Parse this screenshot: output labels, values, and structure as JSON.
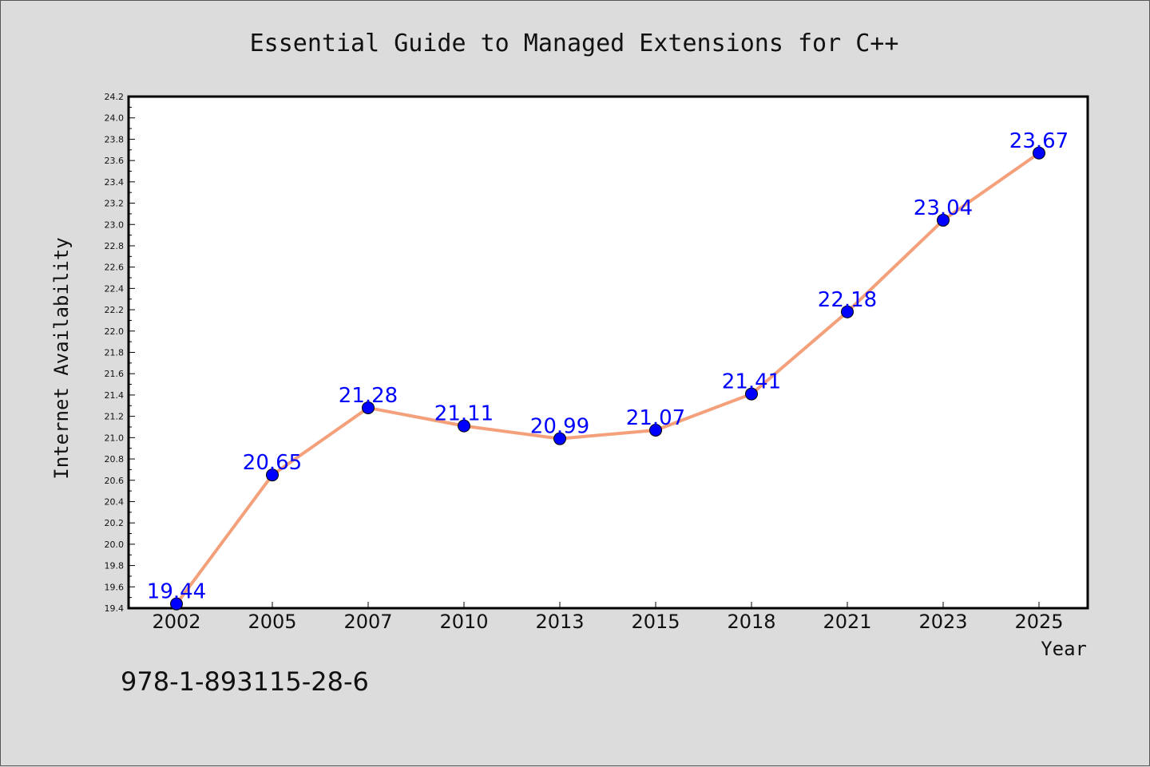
{
  "chart_data": {
    "type": "line",
    "title": "Essential Guide to Managed Extensions for C++",
    "xlabel": "Year",
    "ylabel": "Internet Availability",
    "categories": [
      "2002",
      "2005",
      "2007",
      "2010",
      "2013",
      "2015",
      "2018",
      "2021",
      "2023",
      "2025"
    ],
    "series": [
      {
        "values": [
          19.44,
          20.65,
          21.28,
          21.11,
          20.99,
          21.07,
          21.41,
          22.18,
          23.04,
          23.67
        ],
        "labels": [
          "19.44",
          "20.65",
          "21.28",
          "21.11",
          "20.99",
          "21.07",
          "21.41",
          "22.18",
          "23.04",
          "23.67"
        ]
      }
    ],
    "ylim": [
      19.4,
      24.2
    ],
    "yticks": [
      "19.4",
      "19.6",
      "19.8",
      "20.0",
      "20.2",
      "20.4",
      "20.6",
      "20.8",
      "21.0",
      "21.2",
      "21.4",
      "21.6",
      "21.8",
      "22.0",
      "22.2",
      "22.4",
      "22.6",
      "22.8",
      "23.0",
      "23.2",
      "23.4",
      "23.6",
      "23.8",
      "24.0",
      "24.2"
    ],
    "grid": false,
    "line_color": "#f4a07a",
    "marker_color": "#0000ff",
    "label_color": "#0000ff",
    "background_color": "#dcdcdc",
    "plot_background": "#ffffff"
  },
  "footer": {
    "isbn": "978-1-893115-28-6"
  }
}
